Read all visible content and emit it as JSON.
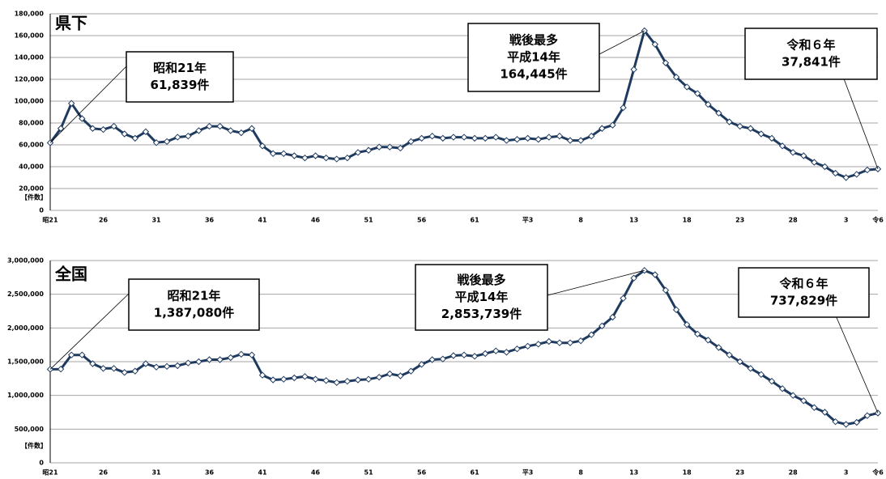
{
  "chart_data": [
    {
      "type": "line",
      "title": "県下",
      "unit_label": "【件数】",
      "categories": [
        "昭21",
        null,
        null,
        null,
        null,
        "26",
        null,
        null,
        null,
        null,
        "31",
        null,
        null,
        null,
        null,
        "36",
        null,
        null,
        null,
        null,
        "41",
        null,
        null,
        null,
        null,
        "46",
        null,
        null,
        null,
        null,
        "51",
        null,
        null,
        null,
        null,
        "56",
        null,
        null,
        null,
        null,
        "61",
        null,
        null,
        null,
        null,
        "平3",
        null,
        null,
        null,
        null,
        "8",
        null,
        null,
        null,
        null,
        "13",
        null,
        null,
        null,
        null,
        "18",
        null,
        null,
        null,
        null,
        "23",
        null,
        null,
        null,
        null,
        "28",
        null,
        null,
        null,
        null,
        "3",
        null,
        null,
        "令6"
      ],
      "series": [
        {
          "color": "#1f3a5f",
          "values": [
            61839,
            75000,
            98000,
            84000,
            75000,
            74000,
            77000,
            70000,
            66000,
            72000,
            62000,
            63000,
            67000,
            68000,
            73000,
            77000,
            77000,
            73000,
            71000,
            75000,
            59000,
            52000,
            52000,
            50000,
            48000,
            50000,
            48000,
            47000,
            48000,
            53000,
            55000,
            58000,
            58000,
            57000,
            63000,
            66000,
            68000,
            66000,
            67000,
            67000,
            66000,
            66000,
            67000,
            64000,
            65000,
            66000,
            65000,
            67000,
            68000,
            64000,
            64000,
            68000,
            75000,
            78000,
            94000,
            129000,
            164445,
            152000,
            135000,
            122000,
            113000,
            107000,
            97000,
            89000,
            81000,
            77000,
            75000,
            70000,
            66000,
            59000,
            53000,
            50000,
            44000,
            40000,
            34000,
            30000,
            33000,
            37000,
            37841
          ]
        }
      ],
      "ylim": [
        0,
        180000
      ],
      "yticks": [
        0,
        {
          "value": 20000,
          "label": "20,000"
        },
        {
          "value": 40000,
          "label": "40,000"
        },
        {
          "value": 60000,
          "label": "60,000"
        },
        {
          "value": 80000,
          "label": "80,000"
        },
        {
          "value": 100000,
          "label": "100,000"
        },
        {
          "value": 120000,
          "label": "120,000"
        },
        {
          "value": 140000,
          "label": "140,000"
        },
        {
          "value": 160000,
          "label": "160,000"
        },
        {
          "value": 180000,
          "label": "180,000"
        }
      ],
      "grid": true,
      "annotations": [
        {
          "lines": [
            "昭和21年",
            "61,839件"
          ]
        },
        {
          "lines": [
            "戦後最多",
            "平成14年",
            "164,445件"
          ]
        },
        {
          "lines": [
            "令和６年",
            "37,841件"
          ]
        }
      ]
    },
    {
      "type": "line",
      "title": "全国",
      "unit_label": "【件数】",
      "categories": [
        "昭21",
        null,
        null,
        null,
        null,
        "26",
        null,
        null,
        null,
        null,
        "31",
        null,
        null,
        null,
        null,
        "36",
        null,
        null,
        null,
        null,
        "41",
        null,
        null,
        null,
        null,
        "46",
        null,
        null,
        null,
        null,
        "51",
        null,
        null,
        null,
        null,
        "56",
        null,
        null,
        null,
        null,
        "61",
        null,
        null,
        null,
        null,
        "平3",
        null,
        null,
        null,
        null,
        "8",
        null,
        null,
        null,
        null,
        "13",
        null,
        null,
        null,
        null,
        "18",
        null,
        null,
        null,
        null,
        "23",
        null,
        null,
        null,
        null,
        "28",
        null,
        null,
        null,
        null,
        "3",
        null,
        null,
        "令6"
      ],
      "series": [
        {
          "color": "#1f3a5f",
          "values": [
            1387080,
            1390000,
            1600000,
            1600000,
            1470000,
            1400000,
            1400000,
            1340000,
            1360000,
            1470000,
            1420000,
            1430000,
            1440000,
            1480000,
            1500000,
            1530000,
            1530000,
            1560000,
            1610000,
            1600000,
            1300000,
            1230000,
            1240000,
            1260000,
            1280000,
            1240000,
            1220000,
            1190000,
            1210000,
            1230000,
            1240000,
            1270000,
            1320000,
            1290000,
            1360000,
            1460000,
            1530000,
            1540000,
            1590000,
            1600000,
            1580000,
            1620000,
            1660000,
            1640000,
            1690000,
            1730000,
            1760000,
            1800000,
            1780000,
            1780000,
            1810000,
            1900000,
            2030000,
            2160000,
            2440000,
            2740000,
            2853739,
            2790000,
            2560000,
            2270000,
            2050000,
            1910000,
            1820000,
            1710000,
            1600000,
            1500000,
            1400000,
            1310000,
            1210000,
            1100000,
            1000000,
            920000,
            820000,
            750000,
            610000,
            570000,
            600000,
            700000,
            737829
          ]
        }
      ],
      "ylim": [
        0,
        3000000
      ],
      "yticks": [
        0,
        {
          "value": 500000,
          "label": "500,000"
        },
        {
          "value": 1000000,
          "label": "1,000,000"
        },
        {
          "value": 1500000,
          "label": "1,500,000"
        },
        {
          "value": 2000000,
          "label": "2,000,000"
        },
        {
          "value": 2500000,
          "label": "2,500,000"
        },
        {
          "value": 3000000,
          "label": "3,000,000"
        }
      ],
      "grid": true,
      "annotations": [
        {
          "lines": [
            "昭和21年",
            "1,387,080件"
          ]
        },
        {
          "lines": [
            "戦後最多",
            "平成14年",
            "2,853,739件"
          ]
        },
        {
          "lines": [
            "令和６年",
            "737,829件"
          ]
        }
      ]
    }
  ]
}
